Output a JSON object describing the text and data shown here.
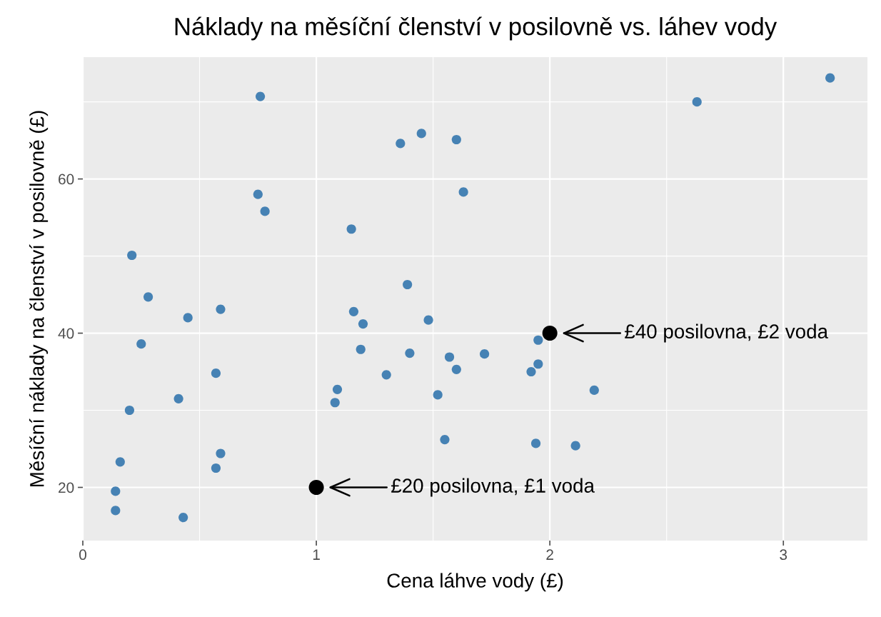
{
  "chart_data": {
    "type": "scatter",
    "title": "Náklady na měsíční členství v posilovně vs. láhev vody",
    "xlabel": "Cena láhve vody (£)",
    "ylabel": "Měsíční náklady na členství v posilovně (£)",
    "series": [
      {
        "color": "#4682b4",
        "x": [
          0.76,
          2.63,
          3.2,
          1.36,
          1.45,
          1.6,
          0.75,
          0.78,
          1.63,
          1.15,
          0.21,
          0.28,
          0.45,
          0.59,
          1.39,
          1.16,
          1.2,
          1.48,
          0.25,
          1.19,
          1.4,
          1.57,
          1.72,
          1.95,
          1.6,
          1.95,
          1.92,
          1.3,
          0.57,
          1.09,
          1.08,
          1.52,
          2.19,
          0.41,
          0.2,
          1.55,
          1.94,
          2.11,
          0.59,
          0.57,
          0.16,
          0.14,
          0.14,
          0.43
        ],
        "values": [
          70.7,
          70.0,
          73.1,
          64.6,
          65.9,
          65.1,
          58.0,
          55.8,
          58.3,
          53.5,
          50.1,
          44.7,
          42.0,
          43.1,
          46.3,
          42.8,
          41.2,
          41.7,
          38.6,
          37.9,
          37.4,
          36.9,
          37.3,
          39.1,
          35.3,
          36.0,
          35.0,
          34.6,
          34.8,
          32.7,
          31.0,
          32.0,
          32.6,
          31.5,
          30.0,
          26.2,
          25.7,
          25.4,
          24.4,
          22.5,
          23.3,
          19.5,
          17.0,
          16.1
        ]
      },
      {
        "color": "#000000",
        "x": [
          1,
          2
        ],
        "values": [
          20,
          40
        ]
      }
    ],
    "annotations": [
      "£20 posilovna, £1 voda",
      "£40 posilovna, £2 voda"
    ],
    "xlim": [
      0,
      3.36
    ],
    "ylim": [
      13.1,
      75.8
    ],
    "xticks": [
      0,
      1,
      2,
      3
    ],
    "yticks": [
      20,
      40,
      60
    ],
    "grid": true,
    "marker": "circle"
  }
}
